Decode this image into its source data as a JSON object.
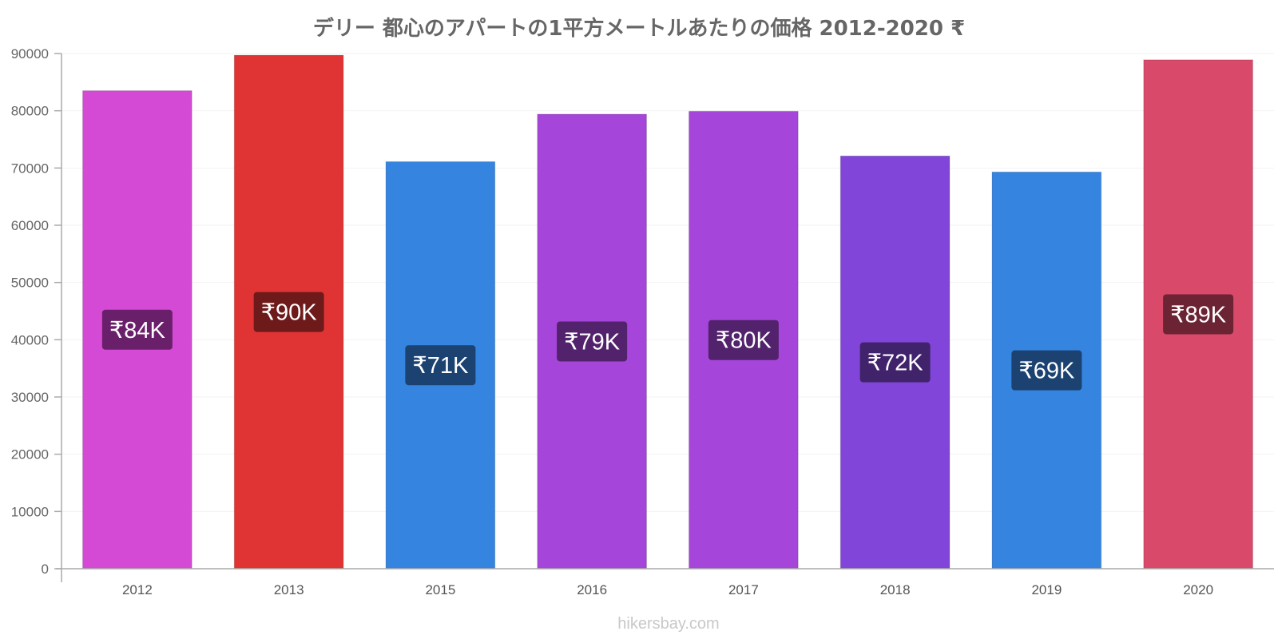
{
  "chart_data": {
    "type": "bar",
    "title": "デリー 都心のアパートの1平方メートルあたりの価格 2012-2020 ₹",
    "categories": [
      "2012",
      "2013",
      "2015",
      "2016",
      "2017",
      "2018",
      "2019",
      "2020"
    ],
    "values": [
      83500,
      89700,
      71100,
      79400,
      79900,
      72100,
      69300,
      88900
    ],
    "data_labels": [
      "₹84K",
      "₹90K",
      "₹71K",
      "₹79K",
      "₹80K",
      "₹72K",
      "₹69K",
      "₹89K"
    ],
    "bar_colors": [
      "#d44ad4",
      "#e03434",
      "#3584e0",
      "#a545d9",
      "#a545d9",
      "#8146d9",
      "#3584e0",
      "#d9496a"
    ],
    "label_bg_colors": [
      "#6a1f6a",
      "#6e1a1a",
      "#1b4270",
      "#52226c",
      "#52226c",
      "#41236c",
      "#1b4270",
      "#6c2434"
    ],
    "ylim": [
      0,
      90000
    ],
    "yticks": [
      "0",
      "10000",
      "20000",
      "30000",
      "40000",
      "50000",
      "60000",
      "70000",
      "80000",
      "90000"
    ],
    "xlabel": "",
    "ylabel": "",
    "grid": true,
    "legend": "none"
  },
  "footer": "hikersbay.com"
}
